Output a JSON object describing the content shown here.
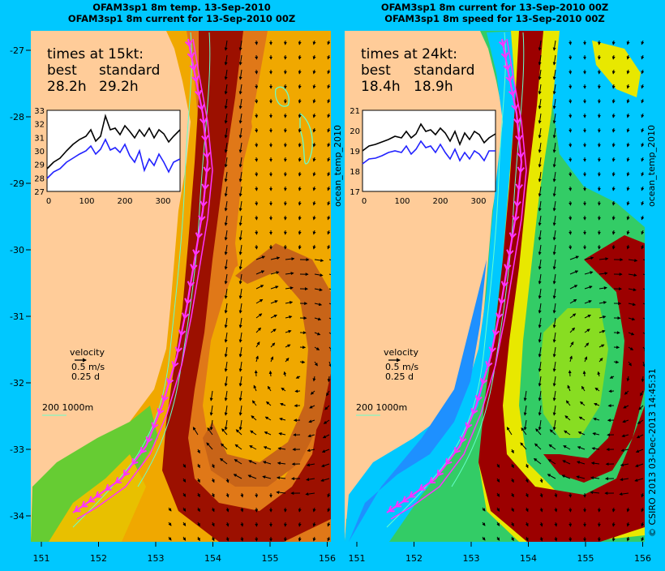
{
  "left_panel": {
    "title_line1": "OFAM3sp1 8m temp. 13-Sep-2010",
    "title_line2": "OFAM3sp1 8m current for 13-Sep-2010 00Z",
    "times_heading": "times at 15kt:",
    "col_best": "best",
    "col_standard": "standard",
    "best_value": "28.2h",
    "standard_value": "29.2h",
    "inset_y_ticks": [
      "33",
      "32",
      "31",
      "30",
      "29",
      "28",
      "27"
    ],
    "inset_x_ticks": [
      "0",
      "100",
      "200",
      "300"
    ],
    "side_label": "ocean_temp_2010",
    "palette": [
      "#66cc33",
      "#e8a000",
      "#f0a800",
      "#e07818",
      "#c86418",
      "#9c1000"
    ]
  },
  "right_panel": {
    "title_line1": "OFAM3sp1 8m current for 13-Sep-2010 00Z",
    "title_line2": "OFAM3sp1 8m speed for 13-Sep-2010 00Z",
    "times_heading": "times at 24kt:",
    "col_best": "best",
    "col_standard": "standard",
    "best_value": "18.4h",
    "standard_value": "18.9h",
    "inset_y_ticks": [
      "21",
      "20",
      "19",
      "18",
      "17"
    ],
    "inset_x_ticks": [
      "0",
      "100",
      "200",
      "300"
    ],
    "side_label": "ocean_temp_2010",
    "palette": [
      "#1e90ff",
      "#00c8ff",
      "#33cc66",
      "#88dd22",
      "#e8e800",
      "#9c0000"
    ]
  },
  "legend": {
    "velocity_label": "velocity",
    "speed_label": "0.5 m/s",
    "duration_label": "0.25 d",
    "depth_label": "200  1000m"
  },
  "axes": {
    "lat_ticks": [
      "-27",
      "-28",
      "-29",
      "-30",
      "-31",
      "-32",
      "-33",
      "-34"
    ],
    "lon_ticks": [
      "151",
      "152",
      "153",
      "154",
      "155",
      "156"
    ]
  },
  "credit": "© CSIRO 2013   03-Dec-2013 14:45:31",
  "colors": {
    "background": "#00c8ff",
    "land": "#ffcc99",
    "best_route": "#000000",
    "standard_route": "#2222ff",
    "track": "#ff33ff"
  }
}
